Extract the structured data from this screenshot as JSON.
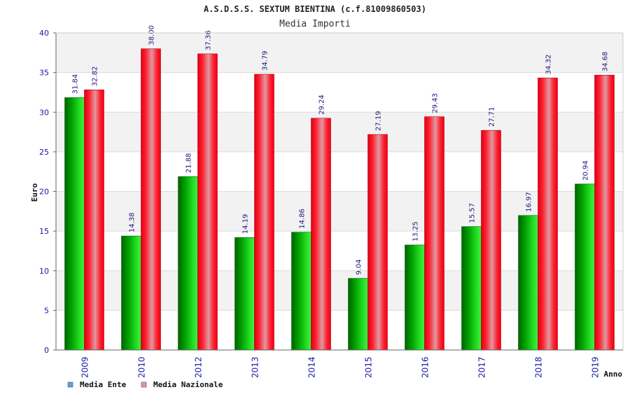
{
  "chart_data": {
    "type": "bar",
    "title": "A.S.D.S.S. SEXTUM BIENTINA (c.f.81009860503)",
    "subtitle": "Media Importi",
    "xlabel": "Anno",
    "ylabel": "Euro",
    "ylim": [
      0,
      40
    ],
    "yticks": [
      0,
      5,
      10,
      15,
      20,
      25,
      30,
      35,
      40
    ],
    "grid": true,
    "legend_position": "bottom-left",
    "categories": [
      "2009",
      "2010",
      "2012",
      "2013",
      "2014",
      "2015",
      "2016",
      "2017",
      "2018",
      "2019"
    ],
    "series": [
      {
        "name": "Media Ente",
        "values": [
          31.84,
          14.38,
          21.88,
          14.19,
          14.86,
          9.04,
          13.25,
          15.57,
          16.97,
          20.94
        ],
        "labels": [
          "31.84",
          "14.38",
          "21.88",
          "14.19",
          "14.86",
          "9.04",
          "13.25",
          "15.57",
          "16.97",
          "20.94"
        ],
        "color": "#00b000",
        "legend_color": "#5aa0e8"
      },
      {
        "name": "Media Nazionale",
        "values": [
          32.82,
          38.0,
          37.36,
          34.79,
          29.24,
          27.19,
          29.43,
          27.71,
          34.32,
          34.68
        ],
        "labels": [
          "32.82",
          "38.00",
          "37.36",
          "34.79",
          "29.24",
          "27.19",
          "29.43",
          "27.71",
          "34.32",
          "34.68"
        ],
        "color": "#ee1122",
        "legend_color": "#e090c0"
      }
    ]
  }
}
